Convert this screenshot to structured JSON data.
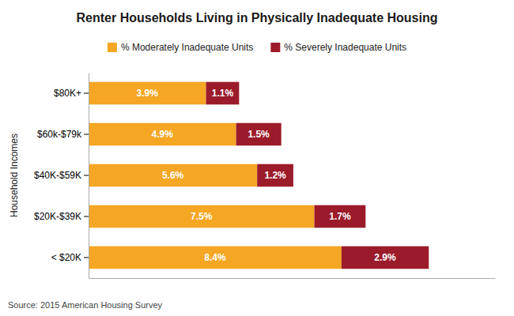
{
  "chart_data": {
    "type": "bar",
    "orientation": "horizontal",
    "stacked": true,
    "title": "Renter Households Living in Physically Inadequate Housing",
    "ylabel": "Household Incomes",
    "annotations": [
      "Source: 2015 American Housing Survey"
    ],
    "categories": [
      "< $20K",
      "$20K-$39K",
      "$40K-$59K",
      "$60k-$79k",
      "$80K+"
    ],
    "series": [
      {
        "name": "% Moderately Inadequate Units",
        "color": "#F5A623",
        "values": [
          8.4,
          7.5,
          5.6,
          4.9,
          3.9
        ],
        "value_labels": [
          "8.4%",
          "7.5%",
          "5.6%",
          "4.9%",
          "3.9%"
        ]
      },
      {
        "name": "% Severely Inadequate Units",
        "color": "#9B1B2A",
        "values": [
          2.9,
          1.7,
          1.2,
          1.5,
          1.1
        ],
        "value_labels": [
          "2.9%",
          "1.7%",
          "1.2%",
          "1.5%",
          "1.1%"
        ]
      }
    ],
    "xlim": [
      0,
      13.5
    ],
    "xticks": [],
    "data_labels": true,
    "tick_labels": "y",
    "grid": false,
    "legend": "top"
  }
}
